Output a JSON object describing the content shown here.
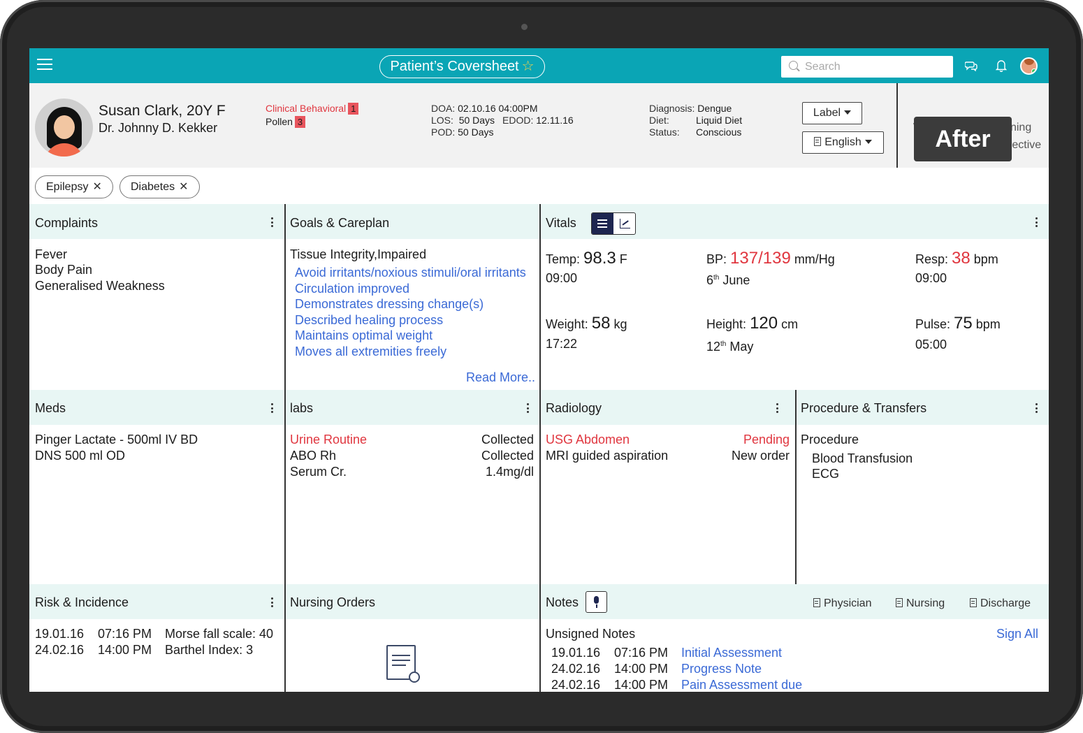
{
  "header": {
    "title": "Patient’s Coversheet",
    "star_icon": "☆",
    "search_placeholder": "Search"
  },
  "patient": {
    "name": "Susan Clark, 20Y F",
    "doctor": "Dr. Johnny D. Kekker",
    "alerts": [
      {
        "label": "Clinical Behavioral",
        "count": "1",
        "color": "#e0363f"
      },
      {
        "label": "Pollen",
        "count": "3",
        "color": "#1c1c1c"
      }
    ],
    "doa_label": "DOA:",
    "doa": "02.10.16 04:00PM",
    "los_label": "LOS:",
    "los": "50 Days",
    "edod_label": "EDOD:",
    "edod": "12.11.16",
    "pod_label": "POD:",
    "pod": "50 Days",
    "diagnosis_label": "Diagnosis:",
    "diagnosis": "Dengue",
    "diet_label": "Diet:",
    "diet": "Liquid Diet",
    "status_label": "Status:",
    "status": "Conscious",
    "label_button": "Label",
    "language_button": "English",
    "warning_text": "W -  No Clinical Warning",
    "directive_prefix": "D -",
    "directive_text": "No Advance Directive",
    "after_tag": "After"
  },
  "tags": [
    "Epilepsy",
    "Diabetes"
  ],
  "complaints": {
    "title": "Complaints",
    "items": [
      "Fever",
      "Body Pain",
      "Generalised Weakness"
    ]
  },
  "goals": {
    "title": "Goals & Careplan",
    "heading": "Tissue Integrity,Impaired",
    "items": [
      "Avoid irritants/noxious stimuli/oral irritants",
      "Circulation improved",
      "Demonstrates dressing change(s)",
      "Described healing process",
      "Maintains optimal weight",
      "Moves all extremities freely"
    ],
    "read_more": "Read More.."
  },
  "vitals": {
    "title": "Vitals",
    "temp_label": "Temp:",
    "temp": "98.3",
    "temp_unit": "F",
    "temp_time": "09:00",
    "bp_label": "BP:",
    "bp": "137/139",
    "bp_unit": "mm/Hg",
    "bp_day": "6",
    "bp_day_sup": "th",
    "bp_month": "June",
    "resp_label": "Resp:",
    "resp": "38",
    "resp_unit": "bpm",
    "resp_time": "09:00",
    "weight_label": "Weight:",
    "weight": "58",
    "weight_unit": "kg",
    "weight_time": "17:22",
    "height_label": "Height:",
    "height": "120",
    "height_unit": "cm",
    "height_day": "12",
    "height_day_sup": "th",
    "height_month": "May",
    "pulse_label": "Pulse:",
    "pulse": "75",
    "pulse_unit": "bpm",
    "pulse_time": "05:00",
    "alert_color": "#e0363f"
  },
  "meds": {
    "title": "Meds",
    "items": [
      "Pinger Lactate - 500ml IV BD",
      "DNS 500 ml OD"
    ]
  },
  "labs": {
    "title": "labs",
    "rows": [
      {
        "name": "Urine Routine",
        "value": "Collected"
      },
      {
        "name": "ABO Rh",
        "value": "Collected"
      },
      {
        "name": "Serum Cr.",
        "value": "1.4mg/dl"
      }
    ]
  },
  "radiology": {
    "title": "Radiology",
    "rows": [
      {
        "name": "USG Abdomen",
        "value": "Pending"
      },
      {
        "name": "MRI guided aspiration",
        "value": "New order"
      }
    ]
  },
  "procedure": {
    "title": "Procedure & Transfers",
    "heading": "Procedure",
    "items": [
      "Blood Transfusion",
      "ECG"
    ]
  },
  "risk": {
    "title": "Risk & Incidence",
    "rows": [
      {
        "date": "19.01.16",
        "time": "07:16 PM",
        "desc": "Morse fall scale: 40"
      },
      {
        "date": "24.02.16",
        "time": "14:00 PM",
        "desc": "Barthel Index: 3"
      }
    ]
  },
  "nursing_orders": {
    "title": "Nursing Orders"
  },
  "notes": {
    "title": "Notes",
    "tabs": [
      "Physician",
      "Nursing",
      "Discharge"
    ],
    "unsigned_label": "Unsigned Notes",
    "sign_all": "Sign All",
    "rows": [
      {
        "date": "19.01.16",
        "time": "07:16 PM",
        "name": "Initial Assessment"
      },
      {
        "date": "24.02.16",
        "time": "14:00 PM",
        "name": "Progress Note"
      },
      {
        "date": "24.02.16",
        "time": "14:00 PM",
        "name": "Pain Assessment due"
      }
    ]
  },
  "colors": {
    "accent": "#0aa5b5",
    "section_bg": "#e8f6f4",
    "link": "#3b6ad6",
    "alert": "#e0363f"
  }
}
